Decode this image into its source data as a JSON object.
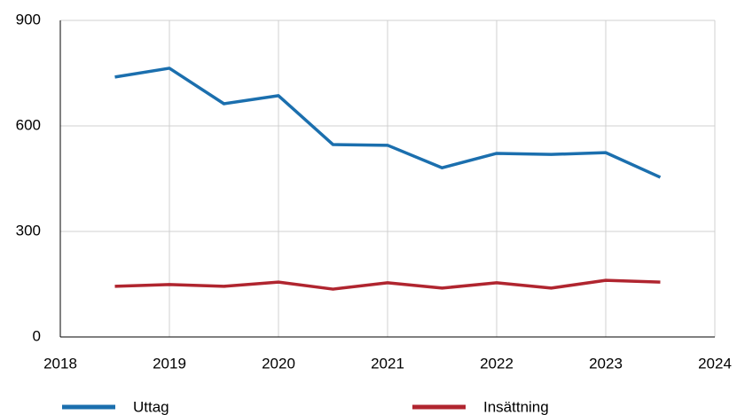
{
  "chart_data": {
    "type": "line",
    "x": [
      2018.5,
      2019,
      2019.5,
      2020,
      2020.5,
      2021,
      2021.5,
      2022,
      2022.5,
      2023,
      2023.5
    ],
    "series": [
      {
        "name": "Uttag",
        "color": "#1b6fae",
        "values": [
          739,
          764,
          663,
          686,
          547,
          545,
          481,
          522,
          519,
          524,
          454
        ]
      },
      {
        "name": "Insättning",
        "color": "#b0252f",
        "values": [
          144,
          149,
          144,
          156,
          136,
          154,
          139,
          154,
          139,
          161,
          156
        ]
      }
    ],
    "xlim": [
      2018,
      2024
    ],
    "xticks": [
      2018,
      2019,
      2020,
      2021,
      2022,
      2023,
      2024
    ],
    "ylim": [
      0,
      900
    ],
    "yticks": [
      0,
      300,
      600,
      900
    ],
    "grid": true,
    "legend": "bottom"
  }
}
